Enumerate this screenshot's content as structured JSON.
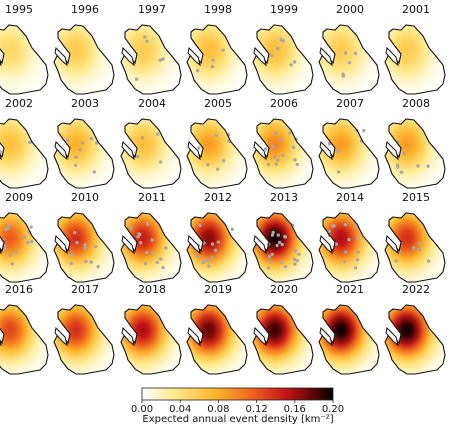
{
  "chart_data": {
    "type": "heatmap",
    "description_kind": "small-multiples density maps",
    "panels": [
      {
        "year": "1995",
        "intensity": 0.05,
        "points": 0
      },
      {
        "year": "1996",
        "intensity": 0.06,
        "points": 0
      },
      {
        "year": "1997",
        "intensity": 0.06,
        "points": 5
      },
      {
        "year": "1998",
        "intensity": 0.07,
        "points": 5
      },
      {
        "year": "1999",
        "intensity": 0.07,
        "points": 6
      },
      {
        "year": "2000",
        "intensity": 0.06,
        "points": 5
      },
      {
        "year": "2001",
        "intensity": 0.06,
        "points": 0
      },
      {
        "year": "2002",
        "intensity": 0.07,
        "points": 2
      },
      {
        "year": "2003",
        "intensity": 0.08,
        "points": 8
      },
      {
        "year": "2004",
        "intensity": 0.07,
        "points": 4
      },
      {
        "year": "2005",
        "intensity": 0.09,
        "points": 7
      },
      {
        "year": "2006",
        "intensity": 0.1,
        "points": 14
      },
      {
        "year": "2007",
        "intensity": 0.09,
        "points": 6
      },
      {
        "year": "2008",
        "intensity": 0.09,
        "points": 7
      },
      {
        "year": "2009",
        "intensity": 0.12,
        "points": 14
      },
      {
        "year": "2010",
        "intensity": 0.14,
        "points": 10
      },
      {
        "year": "2011",
        "intensity": 0.15,
        "points": 14
      },
      {
        "year": "2012",
        "intensity": 0.17,
        "points": 12
      },
      {
        "year": "2013",
        "intensity": 0.2,
        "points": 22
      },
      {
        "year": "2014",
        "intensity": 0.16,
        "points": 14
      },
      {
        "year": "2015",
        "intensity": 0.14,
        "points": 6
      },
      {
        "year": "2016",
        "intensity": 0.13,
        "points": 0
      },
      {
        "year": "2017",
        "intensity": 0.14,
        "points": 0
      },
      {
        "year": "2018",
        "intensity": 0.16,
        "points": 0
      },
      {
        "year": "2019",
        "intensity": 0.18,
        "points": 0
      },
      {
        "year": "2020",
        "intensity": 0.19,
        "points": 0
      },
      {
        "year": "2021",
        "intensity": 0.2,
        "points": 0
      },
      {
        "year": "2022",
        "intensity": 0.2,
        "points": 0
      }
    ],
    "colorbar": {
      "min": 0.0,
      "max": 0.2,
      "ticks": [
        "0.00",
        "0.04",
        "0.08",
        "0.12",
        "0.16",
        "0.20"
      ],
      "label": "Expected annual event density   [km⁻²]",
      "colormap": [
        "#ffffff",
        "#ffe98a",
        "#fdb72c",
        "#f0651d",
        "#c41616",
        "#5a0606",
        "#000000"
      ]
    },
    "point_color": "#a8a8a8"
  }
}
